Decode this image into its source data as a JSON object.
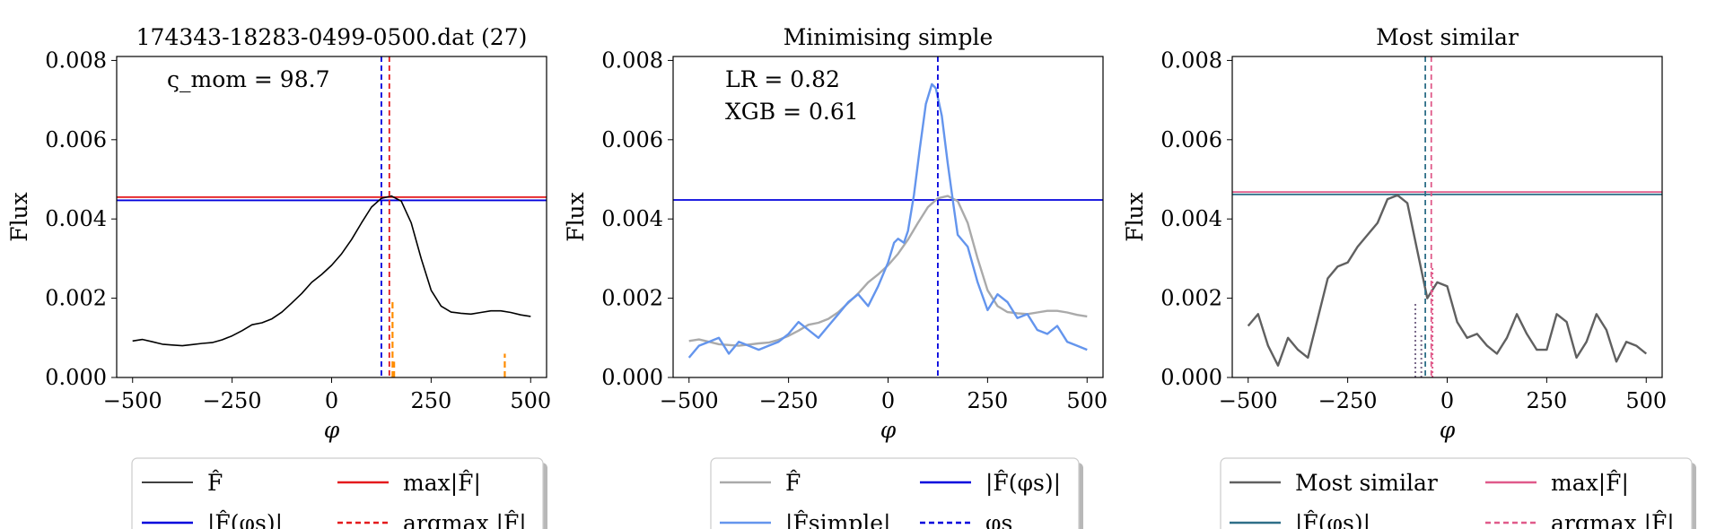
{
  "chart_data": [
    {
      "type": "line",
      "title": "174343-18283-0499-0500.dat (27)",
      "xlabel": "φ",
      "ylabel": "Flux",
      "xlim": [
        -540,
        540
      ],
      "ylim": [
        0,
        0.0081
      ],
      "xticks": [
        -500,
        -250,
        0,
        250,
        500
      ],
      "xtick_labels": [
        "−500",
        "−250",
        "0",
        "250",
        "500"
      ],
      "yticks": [
        0,
        0.002,
        0.004,
        0.006,
        0.008
      ],
      "ytick_labels": [
        "0.000",
        "0.002",
        "0.004",
        "0.006",
        "0.008"
      ],
      "annotations": [
        {
          "text": "ς_mom = 98.7"
        }
      ],
      "series": [
        {
          "name": "F̂",
          "color": "#000000",
          "x": [
            -500,
            -475,
            -450,
            -425,
            -400,
            -375,
            -350,
            -325,
            -300,
            -275,
            -250,
            -225,
            -200,
            -175,
            -150,
            -125,
            -100,
            -75,
            -50,
            -25,
            0,
            25,
            50,
            75,
            100,
            125,
            150,
            175,
            200,
            225,
            250,
            275,
            300,
            325,
            350,
            375,
            400,
            425,
            450,
            475,
            500
          ],
          "y": [
            0.00092,
            0.00096,
            0.0009,
            0.00084,
            0.00082,
            0.0008,
            0.00083,
            0.00086,
            0.00088,
            0.00095,
            0.00105,
            0.00118,
            0.00133,
            0.00138,
            0.00148,
            0.00165,
            0.00188,
            0.00212,
            0.0024,
            0.0026,
            0.00283,
            0.00312,
            0.00348,
            0.0039,
            0.0043,
            0.00452,
            0.00458,
            0.00445,
            0.0039,
            0.003,
            0.0022,
            0.0018,
            0.00165,
            0.00162,
            0.0016,
            0.00164,
            0.00168,
            0.00168,
            0.00164,
            0.00158,
            0.00154
          ]
        }
      ],
      "hlines": [
        {
          "name": "max|F̂|",
          "y": 0.00455,
          "color": "#e41a1c",
          "dash": "solid"
        },
        {
          "name": "|F̂(φs)|",
          "y": 0.00447,
          "color": "#0000dd",
          "dash": "solid"
        }
      ],
      "vlines": [
        {
          "name": "argmax |F̂|",
          "x": 145,
          "color": "#e41a1c",
          "dash": "dashed"
        },
        {
          "name": "φs",
          "x": 125,
          "color": "#0000dd",
          "dash": "dashed"
        }
      ],
      "segments": [
        {
          "x": 153,
          "y0": 0,
          "y1": 0.0019,
          "color": "#ff8c00"
        },
        {
          "x": 157,
          "y0": 0,
          "y1": 0.0004,
          "color": "#ff8c00"
        },
        {
          "x": 435,
          "y0": 0,
          "y1": 0.0006,
          "color": "#ff8c00"
        }
      ],
      "legend": {
        "placement": "below",
        "entries": [
          {
            "label": "F̂",
            "color": "#000000",
            "dash": "solid"
          },
          {
            "label": "max|F̂|",
            "color": "#e41a1c",
            "dash": "solid"
          },
          {
            "label": "|F̂(φs)|",
            "color": "#0000dd",
            "dash": "solid"
          },
          {
            "label": "argmax |F̂|",
            "color": "#e41a1c",
            "dash": "dashed"
          }
        ]
      }
    },
    {
      "type": "line",
      "title": "Minimising simple",
      "xlabel": "φ",
      "ylabel": "Flux",
      "xlim": [
        -540,
        540
      ],
      "ylim": [
        0,
        0.0081
      ],
      "xticks": [
        -500,
        -250,
        0,
        250,
        500
      ],
      "xtick_labels": [
        "−500",
        "−250",
        "0",
        "250",
        "500"
      ],
      "yticks": [
        0,
        0.002,
        0.004,
        0.006,
        0.008
      ],
      "ytick_labels": [
        "0.000",
        "0.002",
        "0.004",
        "0.006",
        "0.008"
      ],
      "annotations": [
        {
          "text": "LR = 0.82"
        },
        {
          "text": "XGB = 0.61"
        }
      ],
      "series": [
        {
          "name": "F̂",
          "color": "#aaaaaa",
          "x": [
            -500,
            -475,
            -450,
            -425,
            -400,
            -375,
            -350,
            -325,
            -300,
            -275,
            -250,
            -225,
            -200,
            -175,
            -150,
            -125,
            -100,
            -75,
            -50,
            -25,
            0,
            25,
            50,
            75,
            100,
            125,
            150,
            175,
            200,
            225,
            250,
            275,
            300,
            325,
            350,
            375,
            400,
            425,
            450,
            475,
            500
          ],
          "y": [
            0.00092,
            0.00096,
            0.0009,
            0.00084,
            0.00082,
            0.0008,
            0.00083,
            0.00086,
            0.00088,
            0.00095,
            0.00105,
            0.00118,
            0.00133,
            0.00138,
            0.00148,
            0.00165,
            0.00188,
            0.00212,
            0.0024,
            0.0026,
            0.00283,
            0.00312,
            0.00348,
            0.0039,
            0.0043,
            0.00452,
            0.00458,
            0.00445,
            0.0039,
            0.003,
            0.0022,
            0.0018,
            0.00165,
            0.00162,
            0.0016,
            0.00164,
            0.00168,
            0.00168,
            0.00164,
            0.00158,
            0.00154
          ]
        },
        {
          "name": "|F̂simple|",
          "color": "#6495ed",
          "x": [
            -500,
            -475,
            -450,
            -425,
            -400,
            -375,
            -350,
            -325,
            -300,
            -275,
            -250,
            -225,
            -200,
            -175,
            -150,
            -125,
            -100,
            -75,
            -50,
            -25,
            0,
            15,
            25,
            40,
            50,
            65,
            80,
            95,
            110,
            120,
            135,
            150,
            165,
            175,
            200,
            225,
            250,
            275,
            300,
            325,
            350,
            375,
            400,
            425,
            450,
            475,
            500
          ],
          "y": [
            0.0005,
            0.0008,
            0.0009,
            0.001,
            0.0006,
            0.0009,
            0.0008,
            0.0007,
            0.0008,
            0.0009,
            0.0011,
            0.0014,
            0.0012,
            0.001,
            0.0013,
            0.0016,
            0.0019,
            0.0021,
            0.0018,
            0.0023,
            0.0029,
            0.0034,
            0.0035,
            0.0034,
            0.0037,
            0.0046,
            0.0058,
            0.0069,
            0.0074,
            0.0073,
            0.0066,
            0.0054,
            0.0043,
            0.0036,
            0.0033,
            0.0024,
            0.0017,
            0.0021,
            0.0019,
            0.0015,
            0.0016,
            0.0012,
            0.0011,
            0.0013,
            0.0009,
            0.0008,
            0.0007
          ]
        }
      ],
      "hlines": [
        {
          "name": "|F̂(φs)|",
          "y": 0.00448,
          "color": "#0000dd",
          "dash": "solid"
        }
      ],
      "vlines": [
        {
          "name": "φs",
          "x": 125,
          "color": "#0000dd",
          "dash": "dashed"
        }
      ],
      "segments": [],
      "legend": {
        "placement": "below",
        "entries": [
          {
            "label": "F̂",
            "color": "#aaaaaa",
            "dash": "solid"
          },
          {
            "label": "|F̂(φs)|",
            "color": "#0000dd",
            "dash": "solid"
          },
          {
            "label": "|F̂simple|",
            "color": "#6495ed",
            "dash": "solid"
          },
          {
            "label": "φs",
            "color": "#0000dd",
            "dash": "dashed"
          }
        ]
      }
    },
    {
      "type": "line",
      "title": "Most similar",
      "xlabel": "φ",
      "ylabel": "Flux",
      "xlim": [
        -540,
        540
      ],
      "ylim": [
        0,
        0.0081
      ],
      "xticks": [
        -500,
        -250,
        0,
        250,
        500
      ],
      "xtick_labels": [
        "−500",
        "−250",
        "0",
        "250",
        "500"
      ],
      "yticks": [
        0,
        0.002,
        0.004,
        0.006,
        0.008
      ],
      "ytick_labels": [
        "0.000",
        "0.002",
        "0.004",
        "0.006",
        "0.008"
      ],
      "annotations": [],
      "series": [
        {
          "name": "Most similar",
          "color": "#606060",
          "x": [
            -500,
            -475,
            -450,
            -425,
            -400,
            -375,
            -350,
            -325,
            -300,
            -275,
            -250,
            -225,
            -200,
            -175,
            -150,
            -125,
            -100,
            -75,
            -50,
            -25,
            0,
            25,
            50,
            75,
            100,
            125,
            150,
            175,
            200,
            225,
            250,
            275,
            300,
            325,
            350,
            375,
            400,
            425,
            450,
            475,
            500
          ],
          "y": [
            0.0013,
            0.0016,
            0.0008,
            0.0003,
            0.001,
            0.0007,
            0.0005,
            0.0015,
            0.0025,
            0.0028,
            0.0029,
            0.0033,
            0.0036,
            0.0039,
            0.0045,
            0.0046,
            0.0044,
            0.0032,
            0.002,
            0.0024,
            0.0023,
            0.0014,
            0.001,
            0.0011,
            0.0008,
            0.0006,
            0.001,
            0.0016,
            0.0011,
            0.0007,
            0.0007,
            0.0016,
            0.0014,
            0.0005,
            0.0009,
            0.0016,
            0.0012,
            0.0004,
            0.0009,
            0.0008,
            0.0006
          ]
        }
      ],
      "hlines": [
        {
          "name": "max|F̂|",
          "y": 0.00468,
          "color": "#e05a8a",
          "dash": "solid"
        },
        {
          "name": "|F̂(φs)|",
          "y": 0.00462,
          "color": "#2e6f88",
          "dash": "solid"
        }
      ],
      "vlines": [
        {
          "name": "argmax |F̂|",
          "x": -40,
          "color": "#e05a8a",
          "dash": "dashed"
        },
        {
          "name": "φs",
          "x": -55,
          "color": "#2e6f88",
          "dash": "dashed"
        }
      ],
      "segments": [
        {
          "x": -80,
          "y0": 0,
          "y1": 0.0019,
          "color": "#7a6a8a",
          "dotted": true
        },
        {
          "x": -65,
          "y0": 0,
          "y1": 0.0011,
          "color": "#7a6a8a",
          "dotted": true
        },
        {
          "x": -37,
          "y0": 0,
          "y1": 0.0028,
          "color": "#e05a8a",
          "dotted": true
        }
      ],
      "legend": {
        "placement": "below",
        "entries": [
          {
            "label": "Most similar",
            "color": "#606060",
            "dash": "solid"
          },
          {
            "label": "max|F̂|",
            "color": "#e05a8a",
            "dash": "solid"
          },
          {
            "label": "|F̂(φs)|",
            "color": "#2e6f88",
            "dash": "solid"
          },
          {
            "label": "argmax |F̂|",
            "color": "#e05a8a",
            "dash": "dashed"
          }
        ]
      }
    }
  ]
}
